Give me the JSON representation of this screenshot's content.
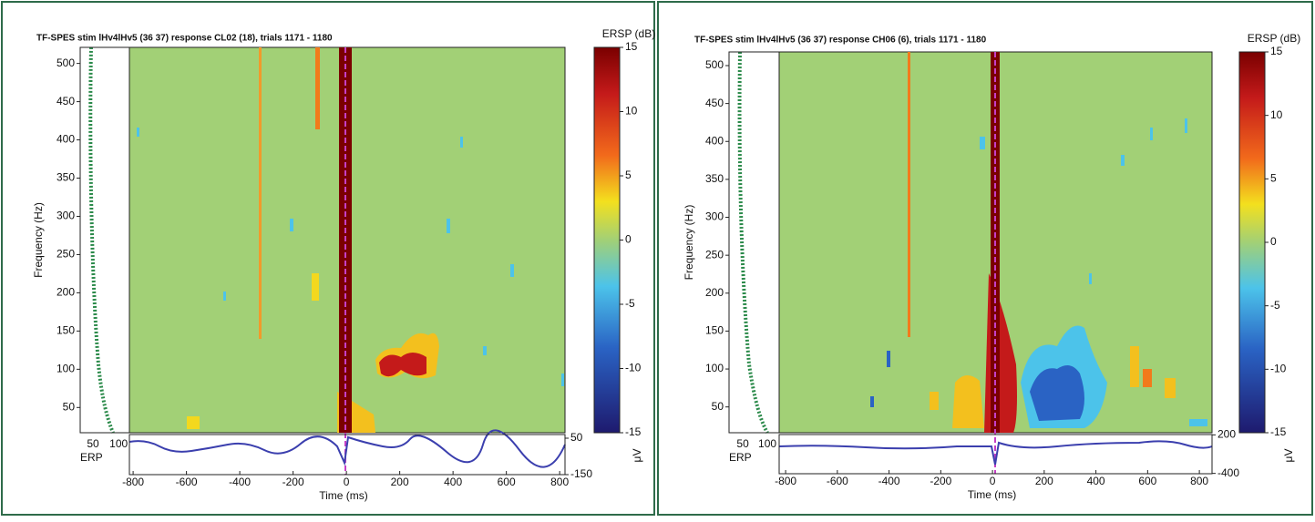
{
  "chart_data": [
    {
      "type": "spectrogram",
      "title": "TF-SPES stim lHv4lHv5 (36 37) response CL02  (18), trials 1171 - 1180",
      "x_label": "Time (ms)",
      "y_label": "Frequency (Hz)",
      "xlim": [
        -814,
        820
      ],
      "xticks": [
        -800,
        -600,
        -400,
        -200,
        0,
        200,
        400,
        600,
        800
      ],
      "ylim": [
        17,
        521
      ],
      "yticks": [
        50,
        100,
        150,
        200,
        250,
        300,
        350,
        400,
        450,
        500
      ],
      "colorbar_label": "ERSP (dB)",
      "clim": [
        -15,
        15
      ],
      "cticks": [
        -15,
        -10,
        -5,
        0,
        5,
        10,
        15
      ],
      "erp_label": "ERP",
      "erp_xlim": [
        25,
        121
      ],
      "erp_xticks": [
        50,
        100
      ],
      "erp_unit": "μV",
      "erp_ylim": [
        -150,
        70
      ],
      "erp_yticks": [
        -150,
        50
      ]
    },
    {
      "type": "spectrogram",
      "title": "TF-SPES stim lHv4lHv5 (36 37) response CH06  (6), trials 1171 - 1180",
      "x_label": "Time (ms)",
      "y_label": "Frequency (Hz)",
      "xlim": [
        -825,
        849
      ],
      "xticks": [
        -800,
        -600,
        -400,
        -200,
        0,
        200,
        400,
        600,
        800
      ],
      "ylim": [
        16,
        518
      ],
      "yticks": [
        50,
        100,
        150,
        200,
        250,
        300,
        350,
        400,
        450,
        500
      ],
      "colorbar_label": "ERSP (dB)",
      "clim": [
        -15,
        15
      ],
      "cticks": [
        -15,
        -10,
        -5,
        0,
        5,
        10,
        15
      ],
      "erp_label": "ERP",
      "erp_xlim": [
        22,
        124
      ],
      "erp_xticks": [
        50,
        100
      ],
      "erp_unit": "μV",
      "erp_ylim": [
        -405,
        205
      ],
      "erp_yticks": [
        -400,
        200
      ]
    }
  ]
}
